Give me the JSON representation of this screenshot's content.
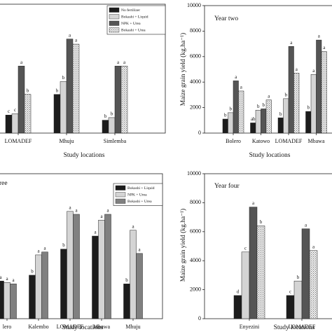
{
  "chart_data": [
    {
      "type": "bar",
      "x_label": "Study locations",
      "legend": "upper right",
      "ylim": [
        0,
        10000
      ],
      "categories": [
        "LOMADEF",
        "Mhuju",
        "Simlemba"
      ],
      "series": [
        {
          "name": "No fertilizer",
          "color": "#1c1c1c",
          "values": [
            1400,
            3000,
            1000
          ],
          "letters": [
            "c",
            "b",
            "b"
          ]
        },
        {
          "name": "Bokashi + Liquid",
          "color": "#d4d4d4",
          "values": [
            1500,
            4000,
            1200
          ],
          "letters": [
            "c",
            "b",
            "b"
          ]
        },
        {
          "name": "NPK + Urea",
          "color": "#555555",
          "values": [
            5200,
            7300,
            5200
          ],
          "letters": [
            "a",
            "a",
            "a"
          ]
        },
        {
          "name": "Bokashi + Urea",
          "color": "#e6e6e6",
          "pattern": "dots",
          "values": [
            3000,
            6900,
            5200
          ],
          "letters": [
            "b",
            "a",
            "a"
          ]
        }
      ]
    },
    {
      "type": "bar",
      "title": "Year two",
      "x_label": "Study locations",
      "y_label": "Maize grain yield (kg.ha⁻¹)",
      "ylim": [
        0,
        10000
      ],
      "yticks": [
        0,
        2000,
        4000,
        6000,
        8000,
        10000
      ],
      "categories": [
        "Bolero",
        "Katowo",
        "LOMADEF",
        "Mbawa"
      ],
      "series": [
        {
          "color": "#1c1c1c",
          "values": [
            1100,
            800,
            1200,
            1700
          ],
          "letters": [
            "b",
            "ab",
            "b",
            "b"
          ]
        },
        {
          "color": "#d4d4d4",
          "values": [
            1600,
            1800,
            2700,
            4600
          ],
          "letters": [
            "b",
            "b",
            "b",
            "a"
          ]
        },
        {
          "color": "#555555",
          "values": [
            4100,
            1900,
            6800,
            7300
          ],
          "letters": [
            "a",
            "b",
            "a",
            "a"
          ]
        },
        {
          "color": "#e6e6e6",
          "pattern": "dots",
          "values": [
            3300,
            2600,
            4700,
            6400
          ],
          "letters": [
            "a",
            "a",
            "a",
            "a"
          ]
        }
      ]
    },
    {
      "type": "bar",
      "title": "ree",
      "x_label": "Study locations",
      "legend": "upper right",
      "ylim": [
        0,
        10000
      ],
      "categories": [
        "lero",
        "Kalembo",
        "LOMADEF",
        "Mbawa",
        "Mhuju"
      ],
      "series": [
        {
          "name": "Bokashi + Liquid",
          "color": "#1c1c1c",
          "values": [
            2600,
            3000,
            4800,
            5700,
            2400
          ],
          "letters": [
            "a",
            "b",
            "b",
            "a",
            "b"
          ]
        },
        {
          "name": "NPK + Urea",
          "color": "#d4d4d4",
          "values": [
            2500,
            4400,
            7400,
            6800,
            6100
          ],
          "letters": [
            "a",
            "a",
            "a",
            "a",
            "a"
          ]
        },
        {
          "name": "Bokashi + Urea",
          "color": "#808080",
          "values": [
            2400,
            4600,
            7200,
            7200,
            4500
          ],
          "letters": [
            "a",
            "a",
            "a",
            "a",
            "a"
          ]
        }
      ]
    },
    {
      "type": "bar",
      "title": "Year four",
      "x_label": "Study locations",
      "y_label": "Maize grain yield (kg.ha⁻¹)",
      "ylim": [
        0,
        10000
      ],
      "yticks": [
        0,
        2000,
        4000,
        6000,
        8000,
        10000
      ],
      "categories": [
        "Enyezini",
        "LOMADEF"
      ],
      "series": [
        {
          "color": "#1c1c1c",
          "values": [
            1600,
            1600
          ],
          "letters": [
            "d",
            "c"
          ]
        },
        {
          "color": "#d4d4d4",
          "values": [
            4600,
            2600
          ],
          "letters": [
            "c",
            "b"
          ]
        },
        {
          "color": "#555555",
          "values": [
            7700,
            6200
          ],
          "letters": [
            "a",
            "a"
          ]
        },
        {
          "color": "#e6e6e6",
          "pattern": "dots",
          "values": [
            6400,
            4700
          ],
          "letters": [
            "b",
            "a"
          ]
        }
      ]
    }
  ]
}
